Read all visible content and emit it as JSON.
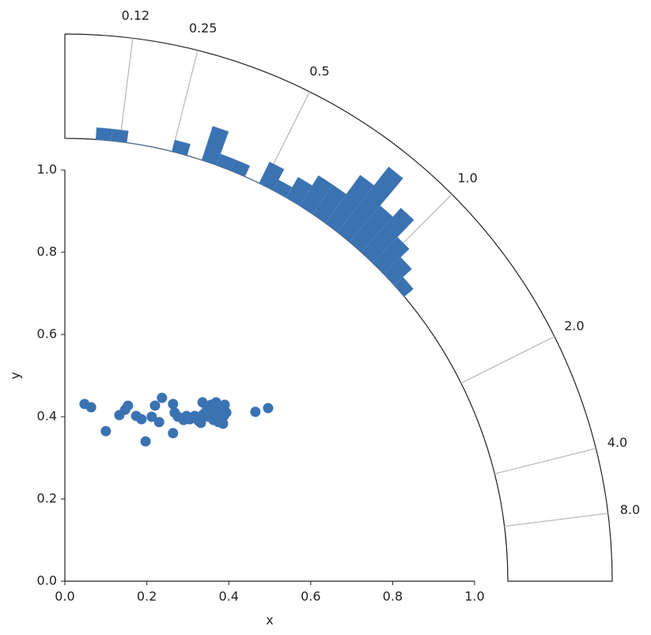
{
  "chart_data": {
    "type": "scatter",
    "xlabel": "x",
    "ylabel": "y",
    "color": "#3a72b2",
    "xlim": [
      0,
      1
    ],
    "ylim": [
      0,
      1
    ],
    "xticks": [
      {
        "value": 0,
        "label": "0.0"
      },
      {
        "value": 0.2,
        "label": "0.2"
      },
      {
        "value": 0.4,
        "label": "0.4"
      },
      {
        "value": 0.6,
        "label": "0.6"
      },
      {
        "value": 0.8,
        "label": "0.8"
      },
      {
        "value": 1,
        "label": "1.0"
      }
    ],
    "yticks": [
      {
        "value": 0,
        "label": "0.0"
      },
      {
        "value": 0.2,
        "label": "0.2"
      },
      {
        "value": 0.4,
        "label": "0.4"
      },
      {
        "value": 0.6,
        "label": "0.6"
      },
      {
        "value": 0.8,
        "label": "0.8"
      },
      {
        "value": 1,
        "label": "1.0"
      }
    ],
    "x": [
      0.048,
      0.064,
      0.1,
      0.133,
      0.147,
      0.154,
      0.174,
      0.187,
      0.197,
      0.212,
      0.22,
      0.23,
      0.237,
      0.264,
      0.264,
      0.268,
      0.276,
      0.29,
      0.297,
      0.305,
      0.317,
      0.326,
      0.332,
      0.338,
      0.336,
      0.347,
      0.351,
      0.357,
      0.363,
      0.369,
      0.375,
      0.38,
      0.386,
      0.39,
      0.394,
      0.465,
      0.496,
      0.363,
      0.375,
      0.388
    ],
    "y": [
      0.431,
      0.423,
      0.365,
      0.404,
      0.417,
      0.427,
      0.402,
      0.394,
      0.34,
      0.4,
      0.427,
      0.387,
      0.446,
      0.431,
      0.36,
      0.41,
      0.4,
      0.392,
      0.402,
      0.394,
      0.402,
      0.39,
      0.385,
      0.406,
      0.435,
      0.421,
      0.4,
      0.429,
      0.41,
      0.435,
      0.413,
      0.394,
      0.383,
      0.429,
      0.41,
      0.412,
      0.421,
      0.392,
      0.387,
      0.402
    ],
    "ratio_hist": {
      "type": "histogram",
      "color": "#3a72b2",
      "bins": [
        0.07,
        0.105,
        0.141,
        0.176,
        0.213,
        0.249,
        0.287,
        0.325,
        0.364,
        0.404,
        0.445,
        0.488,
        0.532,
        0.577,
        0.625,
        0.675,
        0.727,
        0.781,
        0.839,
        0.9,
        0.966,
        1.036,
        1.111,
        1.192
      ],
      "counts": [
        1,
        1,
        0,
        0,
        0,
        1,
        0,
        3,
        1,
        1,
        0,
        2,
        1,
        2,
        3,
        3,
        5,
        7,
        4,
        5,
        3,
        2,
        1
      ],
      "ticks": [
        {
          "value": 0.125,
          "label": "0.12"
        },
        0.25,
        0.5,
        {
          "value": 1,
          "label": "1.0"
        },
        {
          "value": 2,
          "label": "2.0"
        },
        {
          "value": 4,
          "label": "4.0"
        },
        {
          "value": 8,
          "label": "8.0"
        }
      ]
    }
  }
}
